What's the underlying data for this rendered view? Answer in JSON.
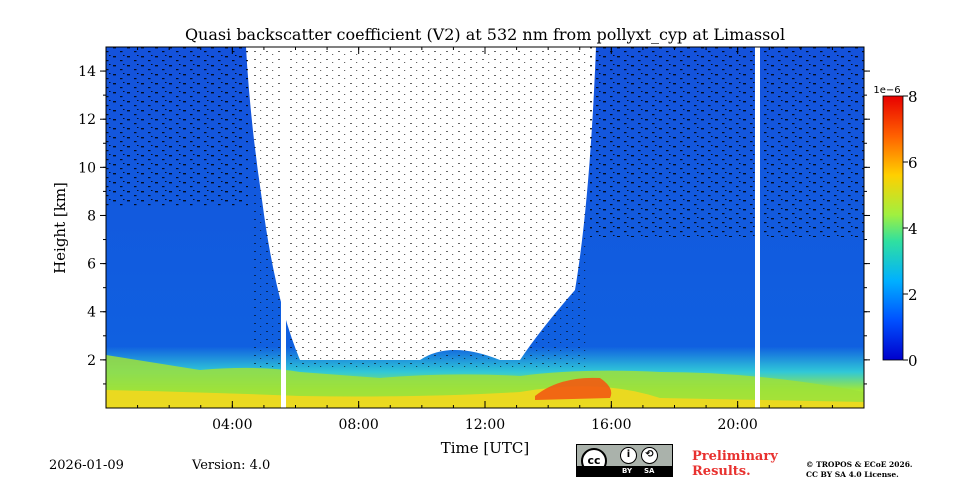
{
  "chart_data": {
    "type": "heatmap",
    "title": "Quasi backscatter coefficient (V2) at 532 nm from pollyxt_cyp at Limassol",
    "xlabel": "Time [UTC]",
    "ylabel": "Height [km]",
    "xlim_hours": [
      0,
      24
    ],
    "ylim_km": [
      0,
      15
    ],
    "x_ticks": [
      {
        "hour": 4,
        "label": "04:00"
      },
      {
        "hour": 8,
        "label": "08:00"
      },
      {
        "hour": 12,
        "label": "12:00"
      },
      {
        "hour": 16,
        "label": "16:00"
      },
      {
        "hour": 20,
        "label": "20:00"
      }
    ],
    "y_ticks": [
      {
        "value": 2,
        "label": "2"
      },
      {
        "value": 4,
        "label": "4"
      },
      {
        "value": 6,
        "label": "6"
      },
      {
        "value": 8,
        "label": "8"
      },
      {
        "value": 10,
        "label": "10"
      },
      {
        "value": 12,
        "label": "12"
      },
      {
        "value": 14,
        "label": "14"
      }
    ],
    "colorbar": {
      "colormap": "jet",
      "range": [
        0,
        8
      ],
      "offset_label": "1e−6",
      "ticks": [
        {
          "value": 0,
          "label": "0"
        },
        {
          "value": 2,
          "label": "2"
        },
        {
          "value": 4,
          "label": "4"
        },
        {
          "value": 6,
          "label": "6"
        },
        {
          "value": 8,
          "label": "8"
        }
      ]
    },
    "description_regions": {
      "no_data_gaps_hours": [
        [
          5.55,
          5.75
        ],
        [
          20.55,
          20.7
        ]
      ],
      "daytime_noisy_hours": [
        4.5,
        15.5
      ],
      "boundary_layer_top_km": 1.5
    }
  },
  "footer": {
    "date": "2026-01-09",
    "version": "Version: 4.0",
    "preliminary_line1": "Preliminary",
    "preliminary_line2": "Results.",
    "copyright_line1": "© TROPOS & ECoE 2026.",
    "copyright_line2": "CC BY SA 4.0 License.",
    "license_by": "BY",
    "license_sa": "SA",
    "license_cc": "cc"
  }
}
